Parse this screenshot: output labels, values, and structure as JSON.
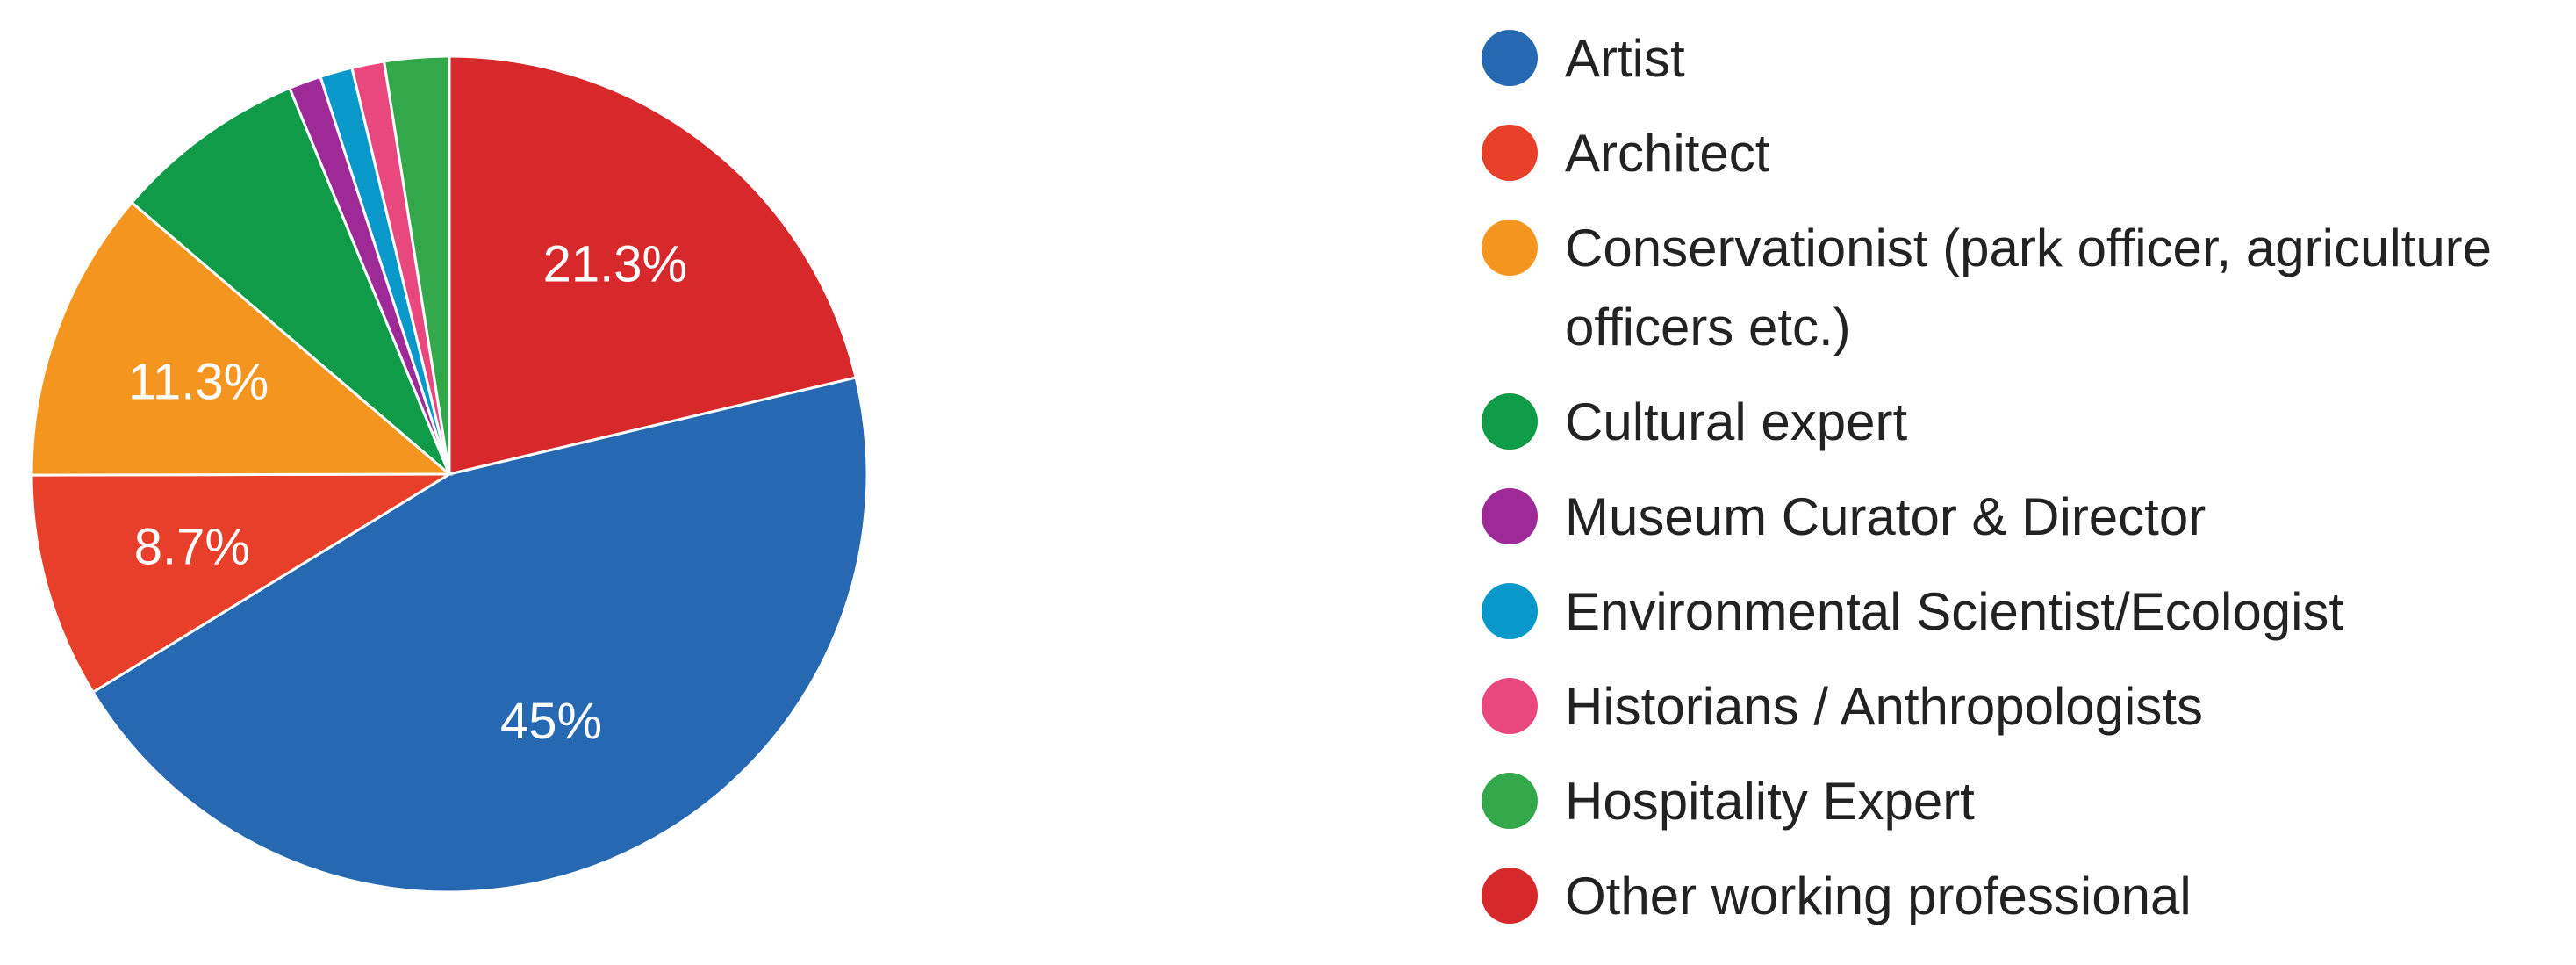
{
  "colors": {
    "artist": "#2668b1",
    "architect": "#e83f2a",
    "conservationist": "#f4951f",
    "cultural_expert": "#0f9b47",
    "museum_curator": "#9d2a97",
    "environmental_scientist": "#0898c9",
    "historians": "#e9487e",
    "hospitality": "#33a84a",
    "other": "#d7292b"
  },
  "legend": [
    {
      "label": "Artist",
      "color": "#2668b1"
    },
    {
      "label": "Architect",
      "color": "#e83f2a"
    },
    {
      "label": "Conservationist (park officer, agriculture officers etc.)",
      "color": "#f4951f"
    },
    {
      "label": "Cultural expert",
      "color": "#0f9b47"
    },
    {
      "label": "Museum Curator & Director",
      "color": "#9d2a97"
    },
    {
      "label": "Environmental Scientist/Ecologist",
      "color": "#0898c9"
    },
    {
      "label": "Historians / Anthropologists",
      "color": "#e9487e"
    },
    {
      "label": "Hospitality Expert",
      "color": "#33a84a"
    },
    {
      "label": "Other working professional",
      "color": "#d7292b"
    }
  ],
  "chart_data": {
    "type": "pie",
    "legend_position": "right",
    "slices": [
      {
        "name": "Artist",
        "value": 45,
        "label": "45%",
        "color": "#2668b1"
      },
      {
        "name": "Architect",
        "value": 8.7,
        "label": "8.7%",
        "color": "#e83f2a"
      },
      {
        "name": "Conservationist (park officer, agriculture officers etc.)",
        "value": 11.3,
        "label": "11.3%",
        "color": "#f4951f"
      },
      {
        "name": "Cultural expert",
        "value": 7.5,
        "label": "",
        "color": "#0f9b47"
      },
      {
        "name": "Museum Curator & Director",
        "value": 1.25,
        "label": "",
        "color": "#9d2a97"
      },
      {
        "name": "Environmental Scientist/Ecologist",
        "value": 1.25,
        "label": "",
        "color": "#0898c9"
      },
      {
        "name": "Historians / Anthropologists",
        "value": 1.25,
        "label": "",
        "color": "#e9487e"
      },
      {
        "name": "Hospitality Expert",
        "value": 2.5,
        "label": "",
        "color": "#33a84a"
      },
      {
        "name": "Other working professional",
        "value": 21.3,
        "label": "21.3%",
        "color": "#d7292b"
      }
    ]
  }
}
